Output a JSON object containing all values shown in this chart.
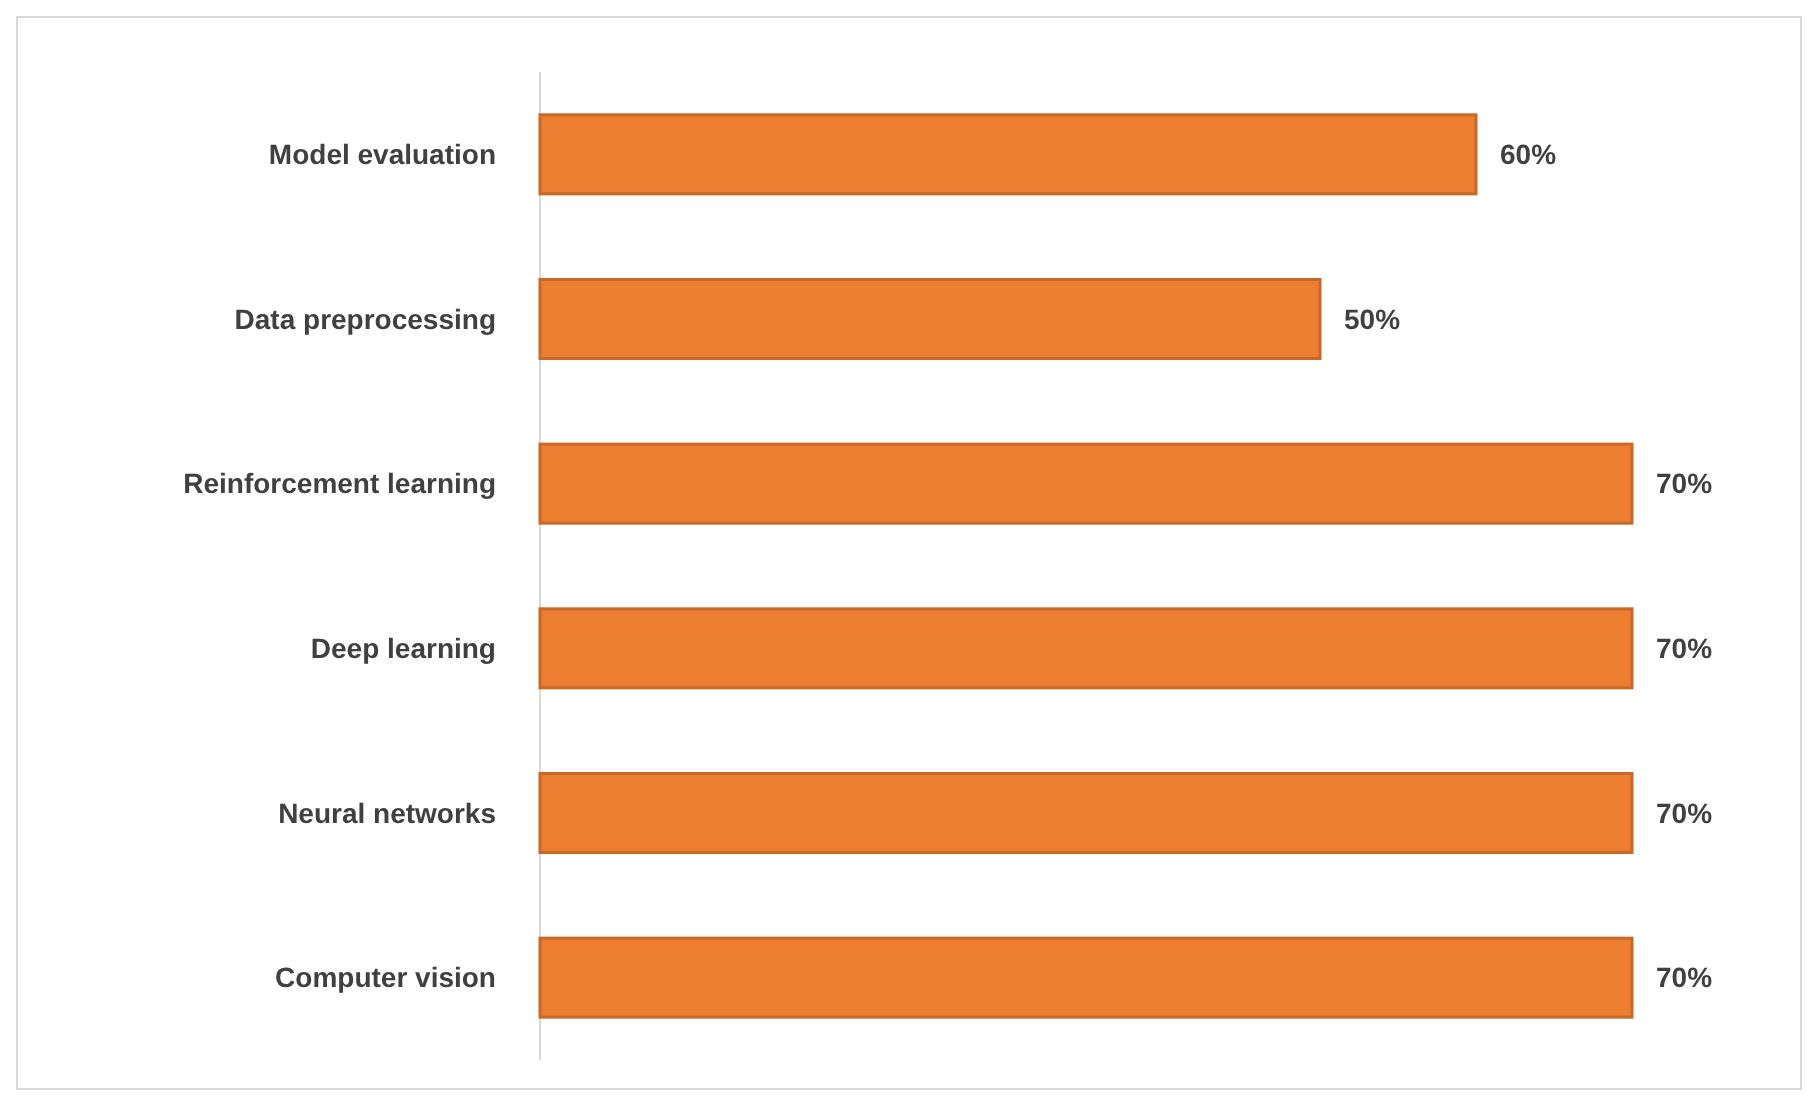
{
  "chart_data": {
    "type": "bar",
    "orientation": "horizontal",
    "categories": [
      "Model evaluation",
      "Data preprocessing",
      "Reinforcement learning",
      "Deep learning",
      "Neural networks",
      "Computer vision"
    ],
    "values": [
      60,
      50,
      70,
      70,
      70,
      70
    ],
    "value_labels": [
      "60%",
      "50%",
      "70%",
      "70%",
      "70%",
      "70%"
    ],
    "color": "#ed7d31"
  }
}
